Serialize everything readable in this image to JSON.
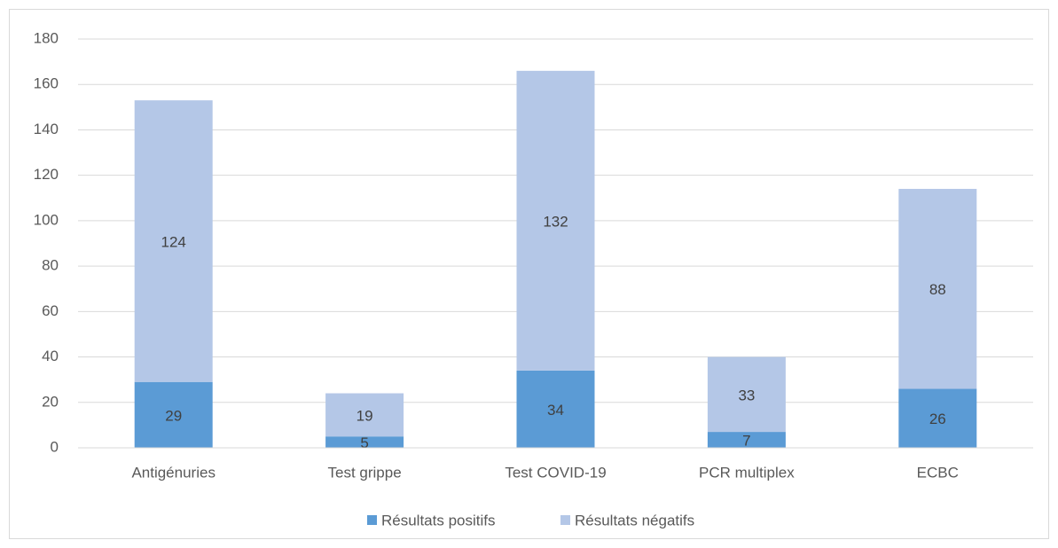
{
  "chart_data": {
    "type": "stacked_bar",
    "categories": [
      "Antigénuries",
      "Test grippe",
      "Test COVID-19",
      "PCR multiplex",
      "ECBC"
    ],
    "series": [
      {
        "name": "Résultats positifs",
        "color": "#5b9bd5",
        "values": [
          29,
          5,
          34,
          7,
          26
        ]
      },
      {
        "name": "Résultats négatifs",
        "color": "#b4c7e7",
        "values": [
          124,
          19,
          132,
          33,
          88
        ]
      }
    ],
    "ylim": [
      0,
      180
    ],
    "yticks": [
      0,
      20,
      40,
      60,
      80,
      100,
      120,
      140,
      160,
      180
    ],
    "grid": true,
    "legend": "bottom"
  }
}
